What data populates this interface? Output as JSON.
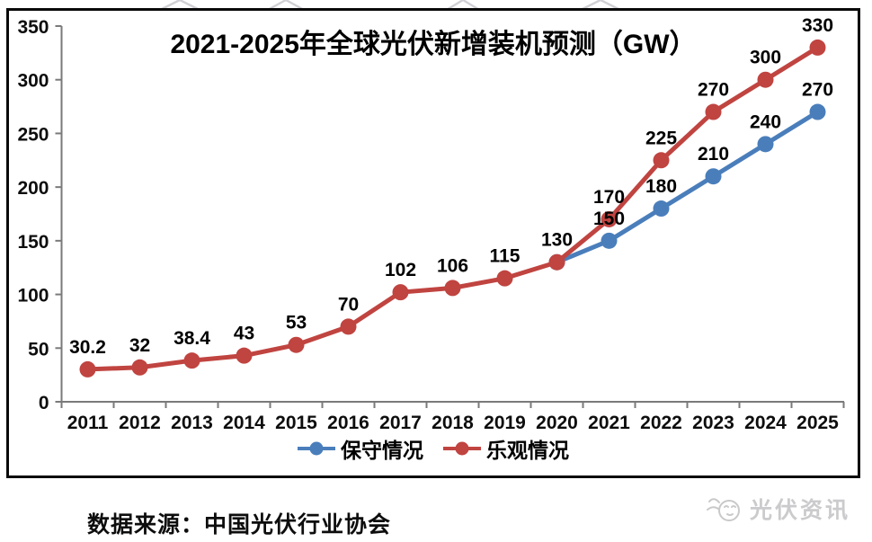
{
  "title": "2021-2025年全球光伏新增装机预测（GW）",
  "chart_data": {
    "type": "line",
    "title": "2021-2025年全球光伏新增装机预测（GW）",
    "categories": [
      "2011",
      "2012",
      "2013",
      "2014",
      "2015",
      "2016",
      "2017",
      "2018",
      "2019",
      "2020",
      "2021",
      "2022",
      "2023",
      "2024",
      "2025"
    ],
    "series": [
      {
        "key": "conservative",
        "name": "保守情况",
        "color": "#4A7EBB",
        "values": [
          null,
          null,
          null,
          null,
          null,
          null,
          null,
          null,
          null,
          130,
          150,
          180,
          210,
          240,
          270
        ],
        "labels_start_index": 10
      },
      {
        "key": "optimistic",
        "name": "乐观情况",
        "color": "#C04440",
        "values": [
          30.2,
          32,
          38.4,
          43,
          53,
          70,
          102,
          106,
          115,
          130,
          170,
          225,
          270,
          300,
          330
        ],
        "labels_start_index": 0
      }
    ],
    "ylim": [
      0,
      350
    ],
    "yticks": [
      0,
      50,
      100,
      150,
      200,
      250,
      300,
      350
    ],
    "xlabel": "",
    "ylabel": "",
    "grid": false,
    "legend_position": "bottom-inside",
    "data_labels": true
  },
  "legend": {
    "items": [
      {
        "label": "保守情况",
        "color": "#4A7EBB"
      },
      {
        "label": "乐观情况",
        "color": "#C04440"
      }
    ]
  },
  "footer": {
    "source_label": "数据来源：中国光伏行业协会"
  },
  "logo": {
    "text": "光伏资讯",
    "icon": "bird-icon"
  }
}
